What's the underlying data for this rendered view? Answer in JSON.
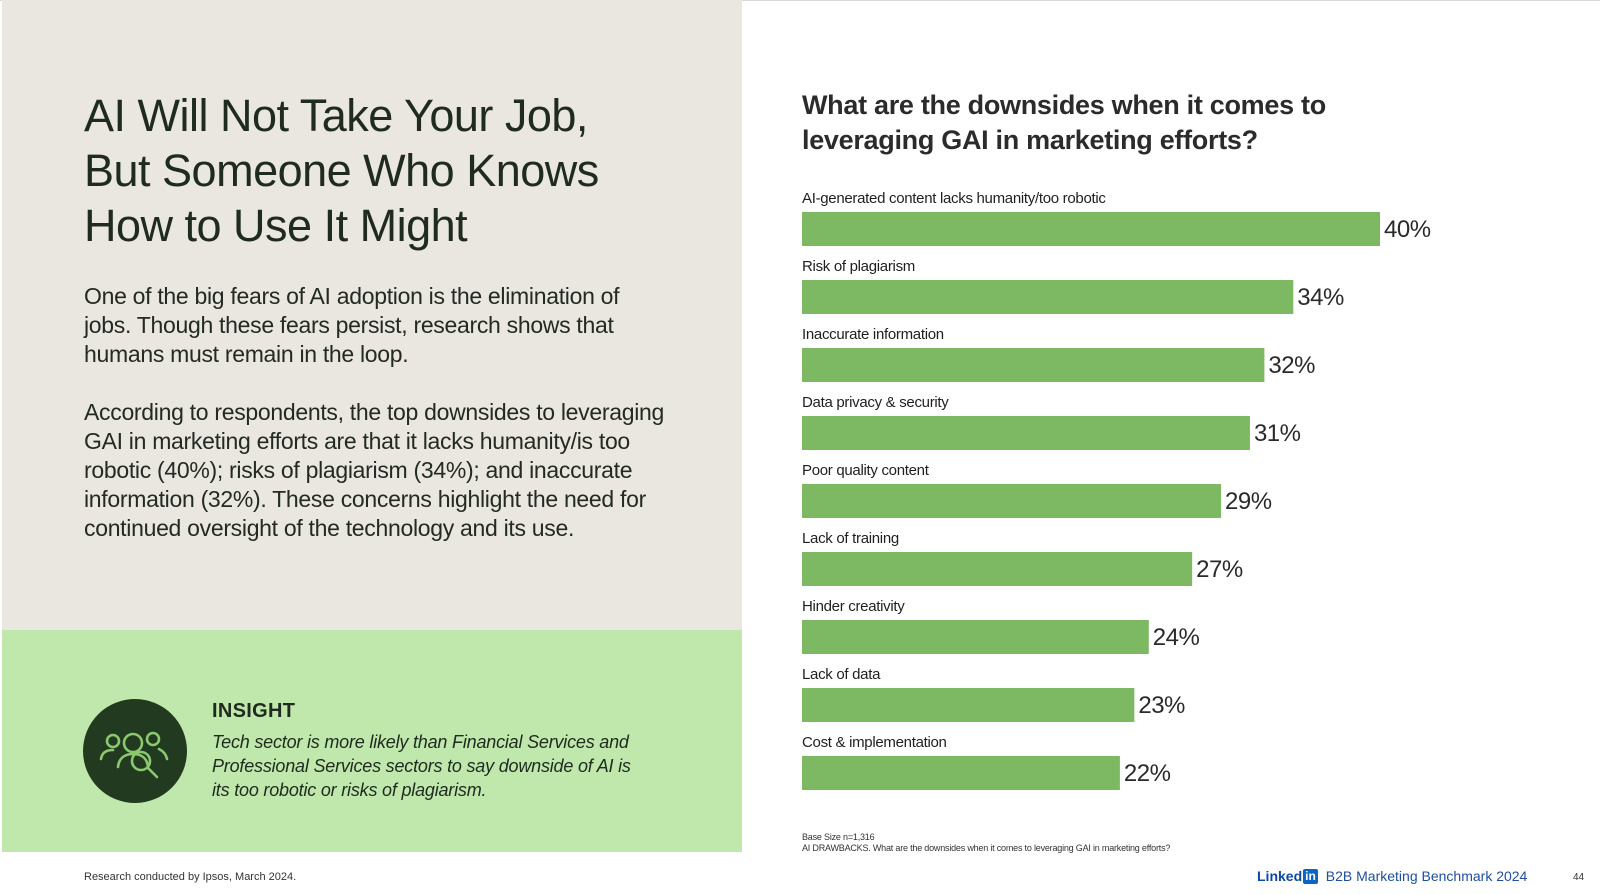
{
  "left": {
    "headline": [
      "AI Will Not Take Your Job,",
      "But Someone Who Knows",
      "How to Use It Might"
    ],
    "para1": "One of the big fears of AI adoption is the elimination of jobs. Though these fears persist, research shows that humans must remain in the loop.",
    "para2": "According to respondents, the top downsides to leveraging GAI in marketing efforts are that it lacks humanity/is too robotic (40%); risks of plagiarism (34%); and inaccurate information (32%). These concerns highlight the need for continued oversight of the technology and its use."
  },
  "insight": {
    "title": "INSIGHT",
    "text": "Tech sector is more likely than Financial Services and Professional Services sectors to say downside of AI is its too robotic or risks of plagiarism.",
    "icon": "people-search-icon",
    "circle_color": "#213a20"
  },
  "footer": {
    "research_note": "Research conducted by Ipsos, March 2024.",
    "base_size": "Base Size n=1,316",
    "question_note": "AI DRAWBACKS. What are the downsides when it comes to leveraging GAI in marketing efforts?",
    "brand_linked": "Linked",
    "brand_in": "in",
    "brand_name": "B2B Marketing Benchmark 2024",
    "page_number": "44"
  },
  "chart_data": {
    "type": "bar",
    "orientation": "horizontal",
    "title": "What are the downsides when it comes to leveraging GAI in marketing efforts?",
    "categories": [
      "AI-generated content lacks humanity/too robotic",
      "Risk of plagiarism",
      "Inaccurate information",
      "Data privacy & security",
      "Poor quality content",
      "Lack of training",
      "Hinder creativity",
      "Lack of data",
      "Cost & implementation"
    ],
    "values": [
      40,
      34,
      32,
      31,
      29,
      27,
      24,
      23,
      22
    ],
    "value_labels": [
      "40%",
      "34%",
      "32%",
      "31%",
      "29%",
      "27%",
      "24%",
      "23%",
      "22%"
    ],
    "unit": "%",
    "bar_color": "#7db862",
    "grid": false,
    "legend": "none"
  },
  "colors": {
    "left_panel": "#eae6e0",
    "insight_panel": "#c0e8ad",
    "bar": "#7db862"
  }
}
